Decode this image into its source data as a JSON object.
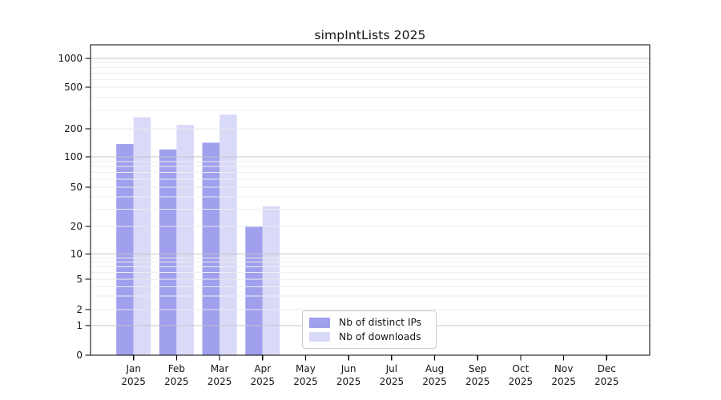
{
  "title": "simpIntLists 2025",
  "chart_data": {
    "type": "bar",
    "title": "simpIntLists 2025",
    "categories": [
      "Jan",
      "Feb",
      "Mar",
      "Apr",
      "May",
      "Jun",
      "Jul",
      "Aug",
      "Sep",
      "Oct",
      "Nov",
      "Dec"
    ],
    "x_tick_second_line": "2025",
    "series": [
      {
        "name": "Nb of distinct IPs",
        "color": "#a0a0ee",
        "values": [
          137,
          120,
          142,
          20,
          0,
          0,
          0,
          0,
          0,
          0,
          0,
          0
        ]
      },
      {
        "name": "Nb of downloads",
        "color": "#d9d9f8",
        "values": [
          258,
          218,
          273,
          32,
          0,
          0,
          0,
          0,
          0,
          0,
          0,
          0
        ]
      }
    ],
    "yticks": [
      0,
      1,
      2,
      5,
      10,
      20,
      50,
      100,
      200,
      500,
      1000
    ],
    "ylim": [
      0,
      1200
    ],
    "xlabel": "",
    "ylabel": "",
    "yscale": "log-like with 0 baseline",
    "grid": true,
    "legend_position": "inside plot, lower center-left",
    "background_color": "#ffffff",
    "grid_decade_color": "#c4c4c4",
    "grid_minor_color": "#efefef"
  }
}
